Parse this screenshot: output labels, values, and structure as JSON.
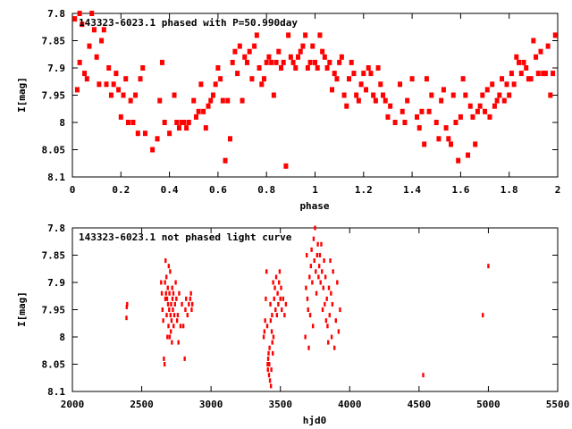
{
  "chart_data": [
    {
      "type": "scatter",
      "title": "143323-6023.1 phased with P=50.990day",
      "xlabel": "phase",
      "ylabel": "I[mag]",
      "xlim": [
        0,
        2
      ],
      "ylim": [
        7.8,
        8.1
      ],
      "y_inverted": true,
      "x_ticks": [
        0,
        0.2,
        0.4,
        0.6,
        0.8,
        1,
        1.2,
        1.4,
        1.6,
        1.8,
        2
      ],
      "y_ticks": [
        7.8,
        7.85,
        7.9,
        7.95,
        8,
        8.05,
        8.1
      ],
      "x_tick_labels": [
        "0",
        "0.2",
        "0.4",
        "0.6",
        "0.8",
        "1",
        "1.2",
        "1.4",
        "1.6",
        "1.8",
        "2"
      ],
      "y_tick_labels": [
        "7.8",
        "7.85",
        "7.9",
        "7.95",
        "8",
        "8.05",
        "8.1"
      ],
      "marker_color": "#ff0000",
      "series": [
        {
          "x": [
            0.01,
            0.02,
            0.03,
            0.03,
            0.04,
            0.05,
            0.06,
            0.07,
            0.08,
            0.09,
            0.1,
            0.11,
            0.12,
            0.13,
            0.14,
            0.15,
            0.16,
            0.17,
            0.18,
            0.19,
            0.2,
            0.21,
            0.22,
            0.23,
            0.24,
            0.25,
            0.26,
            0.27,
            0.28,
            0.29,
            0.3,
            0.33,
            0.35,
            0.36,
            0.37,
            0.38,
            0.4,
            0.42,
            0.43,
            0.44,
            0.45,
            0.46,
            0.47,
            0.48,
            0.5,
            0.51,
            0.52,
            0.53,
            0.54,
            0.55,
            0.56,
            0.57,
            0.58,
            0.59,
            0.6,
            0.61,
            0.62,
            0.63,
            0.64,
            0.65,
            0.66,
            0.67,
            0.68,
            0.69,
            0.7,
            0.71,
            0.72,
            0.73,
            0.74,
            0.75,
            0.76,
            0.77,
            0.78,
            0.79,
            0.8,
            0.81,
            0.82,
            0.83,
            0.84,
            0.85,
            0.86,
            0.87,
            0.88,
            0.89,
            0.9,
            0.91,
            0.92,
            0.93,
            0.94,
            0.95,
            0.96,
            0.97,
            0.98,
            0.99,
            1.0,
            1.01,
            1.02,
            1.03,
            1.04,
            1.05,
            1.06,
            1.07,
            1.08,
            1.09,
            1.1,
            1.11,
            1.12,
            1.13,
            1.14,
            1.15,
            1.16,
            1.17,
            1.18,
            1.19,
            1.2,
            1.21,
            1.22,
            1.23,
            1.24,
            1.25,
            1.26,
            1.27,
            1.28,
            1.29,
            1.3,
            1.31,
            1.33,
            1.35,
            1.36,
            1.37,
            1.38,
            1.4,
            1.42,
            1.43,
            1.44,
            1.45,
            1.46,
            1.47,
            1.48,
            1.5,
            1.51,
            1.52,
            1.53,
            1.54,
            1.55,
            1.56,
            1.57,
            1.58,
            1.59,
            1.6,
            1.61,
            1.62,
            1.63,
            1.64,
            1.65,
            1.66,
            1.67,
            1.68,
            1.69,
            1.7,
            1.71,
            1.72,
            1.73,
            1.74,
            1.75,
            1.76,
            1.77,
            1.78,
            1.79,
            1.8,
            1.81,
            1.82,
            1.83,
            1.84,
            1.85,
            1.86,
            1.87,
            1.88,
            1.89,
            1.9,
            1.91,
            1.92,
            1.93,
            1.94,
            1.95,
            1.96,
            1.97,
            1.98,
            1.99
          ],
          "y": [
            7.81,
            7.94,
            7.89,
            7.8,
            7.82,
            7.91,
            7.92,
            7.86,
            7.8,
            7.83,
            7.88,
            7.93,
            7.85,
            7.83,
            7.93,
            7.9,
            7.95,
            7.93,
            7.91,
            7.94,
            7.99,
            7.95,
            7.92,
            8.0,
            7.96,
            8.0,
            7.95,
            8.02,
            7.92,
            7.9,
            8.02,
            8.05,
            8.03,
            7.96,
            7.89,
            8.0,
            8.02,
            7.95,
            8.0,
            8.01,
            8.0,
            8.0,
            8.01,
            8.0,
            7.96,
            7.99,
            7.98,
            7.93,
            7.98,
            8.01,
            7.97,
            7.96,
            7.95,
            7.93,
            7.9,
            7.92,
            7.96,
            8.07,
            7.96,
            8.03,
            7.89,
            7.87,
            7.91,
            7.86,
            7.96,
            7.88,
            7.89,
            7.87,
            7.92,
            7.86,
            7.84,
            7.9,
            7.93,
            7.92,
            7.89,
            7.88,
            7.89,
            7.95,
            7.89,
            7.87,
            7.9,
            7.89,
            8.08,
            7.84,
            7.88,
            7.89,
            7.9,
            7.88,
            7.87,
            7.86,
            7.84,
            7.9,
            7.89,
            7.86,
            7.89,
            7.9,
            7.84,
            7.87,
            7.88,
            7.9,
            7.89,
            7.94,
            7.91,
            7.92,
            7.89,
            7.88,
            7.95,
            7.97,
            7.92,
            7.89,
            7.91,
            7.95,
            7.96,
            7.93,
            7.91,
            7.94,
            7.9,
            7.91,
            7.95,
            7.96,
            7.9,
            7.93,
            7.95,
            7.96,
            7.99,
            7.97,
            8.0,
            7.93,
            7.98,
            8.0,
            7.96,
            7.92,
            7.99,
            8.01,
            7.98,
            8.04,
            7.92,
            7.98,
            7.95,
            8.0,
            8.03,
            7.96,
            7.94,
            8.01,
            8.03,
            8.04,
            7.95,
            8.0,
            8.07,
            7.99,
            7.92,
            7.95,
            8.06,
            7.97,
            7.99,
            8.04,
            7.98,
            7.97,
            7.95,
            7.98,
            7.94,
            7.99,
            7.93,
            7.97,
            7.96,
            7.95,
            7.92,
            7.96,
            7.93,
            7.95,
            7.91,
            7.93,
            7.88,
            7.89,
            7.91,
            7.89,
            7.9,
            7.92,
            7.92,
            7.85,
            7.88,
            7.91,
            7.87,
            7.91,
            7.91,
            7.86,
            7.95,
            7.91,
            7.84
          ]
        }
      ]
    },
    {
      "type": "scatter",
      "title": "143323-6023.1 not phased light curve",
      "xlabel": "hjd0",
      "ylabel": "I[mag]",
      "xlim": [
        2000,
        5500
      ],
      "ylim": [
        7.8,
        8.1
      ],
      "y_inverted": true,
      "x_ticks": [
        2000,
        2500,
        3000,
        3500,
        4000,
        4500,
        5000,
        5500
      ],
      "y_ticks": [
        7.8,
        7.85,
        7.9,
        7.95,
        8,
        8.05,
        8.1
      ],
      "x_tick_labels": [
        "2000",
        "2500",
        "3000",
        "3500",
        "4000",
        "4500",
        "5000",
        "5500"
      ],
      "y_tick_labels": [
        "7.8",
        "7.85",
        "7.9",
        "7.95",
        "8",
        "8.05",
        "8.1"
      ],
      "marker_color": "#ff0000",
      "series": [
        {
          "x": [
            2390,
            2392,
            2395,
            2640,
            2645,
            2650,
            2655,
            2660,
            2665,
            2668,
            2670,
            2672,
            2675,
            2678,
            2680,
            2683,
            2685,
            2688,
            2690,
            2693,
            2695,
            2698,
            2700,
            2702,
            2705,
            2708,
            2710,
            2712,
            2715,
            2718,
            2720,
            2722,
            2725,
            2728,
            2730,
            2735,
            2740,
            2745,
            2750,
            2755,
            2760,
            2765,
            2770,
            2780,
            2790,
            2800,
            2810,
            2815,
            2820,
            2830,
            2840,
            2850,
            2855,
            2860,
            2865,
            3380,
            3385,
            3390,
            3395,
            3400,
            3405,
            3408,
            3410,
            3412,
            3415,
            3418,
            3420,
            3422,
            3425,
            3428,
            3430,
            3432,
            3435,
            3438,
            3440,
            3442,
            3445,
            3448,
            3450,
            3455,
            3460,
            3465,
            3470,
            3475,
            3480,
            3485,
            3490,
            3495,
            3500,
            3505,
            3510,
            3520,
            3530,
            3540,
            3680,
            3685,
            3690,
            3695,
            3700,
            3705,
            3710,
            3715,
            3720,
            3725,
            3730,
            3735,
            3740,
            3745,
            3750,
            3755,
            3760,
            3765,
            3770,
            3775,
            3780,
            3785,
            3790,
            3795,
            3800,
            3805,
            3810,
            3815,
            3820,
            3825,
            3830,
            3835,
            3840,
            3845,
            3850,
            3855,
            3860,
            3865,
            3870,
            3875,
            3880,
            3890,
            3900,
            3910,
            3920,
            3930,
            4530,
            4960,
            5000
          ],
          "y": [
            7.965,
            7.945,
            7.94,
            7.9,
            7.92,
            7.95,
            7.97,
            8.04,
            8.05,
            7.9,
            7.93,
            7.86,
            7.92,
            7.89,
            7.96,
            7.93,
            8.0,
            7.91,
            7.94,
            7.98,
            7.87,
            7.95,
            7.92,
            8.0,
            7.88,
            7.96,
            7.99,
            7.94,
            7.97,
            8.01,
            7.91,
            7.93,
            7.95,
            7.92,
            7.98,
            7.96,
            7.94,
            7.9,
            7.93,
            7.97,
            7.96,
            8.01,
            7.92,
            7.98,
            7.94,
            7.98,
            8.04,
            7.95,
            7.93,
            7.96,
            7.94,
            7.93,
            7.92,
            7.95,
            7.94,
            8.0,
            7.99,
            7.97,
            7.93,
            7.88,
            7.98,
            8.05,
            8.06,
            8.04,
            8.03,
            8.07,
            8.05,
            8.02,
            8.08,
            7.94,
            7.97,
            8.09,
            8.06,
            7.99,
            7.96,
            8.01,
            8.03,
            7.9,
            8.0,
            7.93,
            7.91,
            7.95,
            7.89,
            7.96,
            7.92,
            7.94,
            7.9,
            7.88,
            7.93,
            7.91,
            7.95,
            7.93,
            7.96,
            7.94,
            8.0,
            7.91,
            7.85,
            7.93,
            7.95,
            8.02,
            7.89,
            7.96,
            7.87,
            7.84,
            7.9,
            7.98,
            7.82,
            7.86,
            7.8,
            7.88,
            7.92,
            7.85,
            7.83,
            7.89,
            7.87,
            7.85,
            7.9,
            7.83,
            7.88,
            7.95,
            7.91,
            7.86,
            7.94,
            7.89,
            7.97,
            7.93,
            7.98,
            8.01,
            7.91,
            7.96,
            7.86,
            7.92,
            8.0,
            7.94,
            7.88,
            8.02,
            7.97,
            7.9,
            7.99,
            7.95,
            8.07,
            7.96,
            7.87
          ]
        }
      ]
    }
  ]
}
